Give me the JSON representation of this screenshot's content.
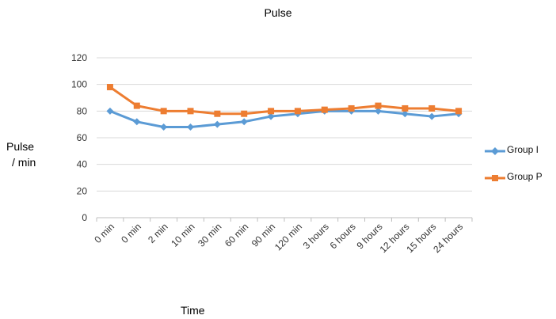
{
  "chart_data": {
    "type": "line",
    "title": "Pulse",
    "ylabel_lines": [
      "Pulse",
      "/ min"
    ],
    "xlabel": "Time",
    "categories": [
      "0 min",
      "0 min",
      "2 min",
      "10 min",
      "30 min",
      "60 min",
      "90 min",
      "120 min",
      "3 hours",
      "6 hours",
      "9 hours",
      "12 hours",
      "15 hours",
      "24 hours"
    ],
    "ylim": [
      0,
      120
    ],
    "yticks": [
      0,
      20,
      40,
      60,
      80,
      100,
      120
    ],
    "grid": true,
    "legend": "right",
    "series": [
      {
        "name": "Group I",
        "color": "#5b9bd5",
        "marker": "diamond",
        "values": [
          80,
          72,
          68,
          68,
          70,
          72,
          76,
          78,
          80,
          80,
          80,
          78,
          76,
          78
        ]
      },
      {
        "name": "Group P",
        "color": "#ed7d31",
        "marker": "square",
        "values": [
          98,
          84,
          80,
          80,
          78,
          78,
          80,
          80,
          81,
          82,
          84,
          82,
          82,
          80
        ]
      }
    ]
  }
}
